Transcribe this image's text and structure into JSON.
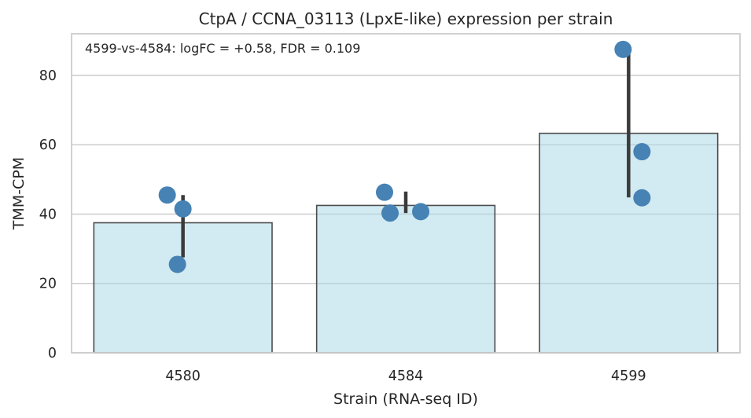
{
  "chart_data": {
    "type": "bar",
    "title": "CtpA / CCNA_03113 (LpxE-like) expression per strain",
    "xlabel": "Strain (RNA-seq ID)",
    "ylabel": "TMM-CPM",
    "categories": [
      "4580",
      "4584",
      "4599"
    ],
    "values": [
      37.5,
      42.5,
      63.3
    ],
    "error_bars": [
      [
        27.5,
        45.5
      ],
      [
        40.3,
        46.5
      ],
      [
        44.8,
        87.5
      ]
    ],
    "points": [
      [
        45.5,
        41.5,
        25.5
      ],
      [
        46.3,
        40.3,
        40.7
      ],
      [
        87.5,
        58.0,
        44.7
      ]
    ],
    "yticks": [
      0,
      20,
      40,
      60,
      80
    ],
    "ylim": [
      0,
      92
    ],
    "grid": true,
    "annotation": "4599-vs-4584: logFC = +0.58, FDR = 0.109",
    "colors": {
      "bar": "#add8e6",
      "point": "#4682b4",
      "error": "#3a3a3a"
    }
  }
}
